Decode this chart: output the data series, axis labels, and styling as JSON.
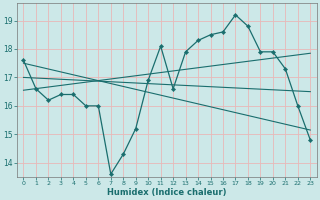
{
  "title": "",
  "xlabel": "Humidex (Indice chaleur)",
  "bg_color": "#cce8e8",
  "grid_color": "#e8b8b8",
  "line_color": "#1a6e6e",
  "xlim": [
    -0.5,
    23.5
  ],
  "ylim": [
    13.5,
    19.6
  ],
  "yticks": [
    14,
    15,
    16,
    17,
    18,
    19
  ],
  "xticks": [
    0,
    1,
    2,
    3,
    4,
    5,
    6,
    7,
    8,
    9,
    10,
    11,
    12,
    13,
    14,
    15,
    16,
    17,
    18,
    19,
    20,
    21,
    22,
    23
  ],
  "main_x": [
    0,
    1,
    2,
    3,
    4,
    5,
    6,
    7,
    8,
    9,
    10,
    11,
    12,
    13,
    14,
    15,
    16,
    17,
    18,
    19,
    20,
    21,
    22,
    23
  ],
  "main_y": [
    17.6,
    16.6,
    16.2,
    16.4,
    16.4,
    16.0,
    16.0,
    13.6,
    14.3,
    15.2,
    16.9,
    18.1,
    16.6,
    17.9,
    18.3,
    18.5,
    18.6,
    19.2,
    18.8,
    17.9,
    17.9,
    17.3,
    16.0,
    14.8
  ],
  "reg_line1": [
    [
      0,
      23
    ],
    [
      16.55,
      17.85
    ]
  ],
  "reg_line2": [
    [
      0,
      23
    ],
    [
      17.5,
      15.15
    ]
  ],
  "reg_line3": [
    [
      0,
      23
    ],
    [
      17.0,
      16.5
    ]
  ]
}
